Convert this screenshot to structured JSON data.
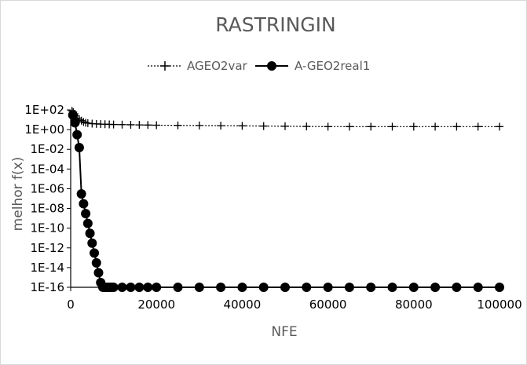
{
  "chart_data": {
    "type": "line",
    "title": "RASTRINGIN",
    "xlabel": "NFE",
    "ylabel": "melhor f(x)",
    "xlim": [
      0,
      100000
    ],
    "xticks": [
      0,
      20000,
      40000,
      60000,
      80000,
      100000
    ],
    "xtick_labels": [
      "0",
      "20000",
      "40000",
      "60000",
      "80000",
      "100000"
    ],
    "yscale": "log",
    "ylim": [
      1e-16,
      100.0
    ],
    "yticks": [
      1e-16,
      1e-14,
      1e-12,
      1e-10,
      1e-08,
      1e-06,
      0.0001,
      0.01,
      1,
      100
    ],
    "ytick_labels": [
      "1E-16",
      "1E-14",
      "1E-12",
      "1E-10",
      "1E-08",
      "1E-06",
      "1E-04",
      "1E-02",
      "1E+00",
      "1E+02"
    ],
    "grid": false,
    "legend_position": "top",
    "series": [
      {
        "name": "AGEO2var",
        "marker": "plus",
        "line": "dotted",
        "x": [
          300,
          600,
          900,
          1200,
          1500,
          2000,
          2500,
          3000,
          3500,
          4000,
          5000,
          6000,
          7000,
          8000,
          9000,
          10000,
          12000,
          14000,
          16000,
          18000,
          20000,
          25000,
          30000,
          35000,
          40000,
          45000,
          50000,
          55000,
          60000,
          65000,
          70000,
          75000,
          80000,
          85000,
          90000,
          95000,
          100000
        ],
        "y": [
          80,
          60,
          40,
          25,
          15,
          10,
          8,
          6,
          5,
          4.5,
          4,
          3.8,
          3.6,
          3.5,
          3.4,
          3.3,
          3.2,
          3.1,
          3.0,
          2.9,
          2.8,
          2.7,
          2.6,
          2.5,
          2.4,
          2.3,
          2.2,
          2.1,
          2.0,
          2.0,
          2.0,
          2.0,
          2.0,
          2.0,
          2.0,
          2.0,
          2.0
        ]
      },
      {
        "name": "A-GEO2real1",
        "marker": "circle",
        "line": "solid",
        "x": [
          500,
          1000,
          1500,
          2000,
          2500,
          3000,
          3500,
          4000,
          4500,
          5000,
          5500,
          6000,
          6500,
          7000,
          7500,
          8000,
          8500,
          9000,
          9500,
          10000,
          12000,
          14000,
          16000,
          18000,
          20000,
          25000,
          30000,
          35000,
          40000,
          45000,
          50000,
          55000,
          60000,
          65000,
          70000,
          75000,
          80000,
          85000,
          90000,
          95000,
          100000
        ],
        "y": [
          30,
          5,
          0.3,
          0.015,
          3e-07,
          3e-08,
          3e-09,
          3e-10,
          3e-11,
          3e-12,
          3e-13,
          3e-14,
          3e-15,
          3e-16,
          1e-16,
          1e-16,
          1e-16,
          1e-16,
          1e-16,
          1e-16,
          1e-16,
          1e-16,
          1e-16,
          1e-16,
          1e-16,
          1e-16,
          1e-16,
          1e-16,
          1e-16,
          1e-16,
          1e-16,
          1e-16,
          1e-16,
          1e-16,
          1e-16,
          1e-16,
          1e-16,
          1e-16,
          1e-16,
          1e-16,
          1e-16
        ]
      }
    ]
  }
}
